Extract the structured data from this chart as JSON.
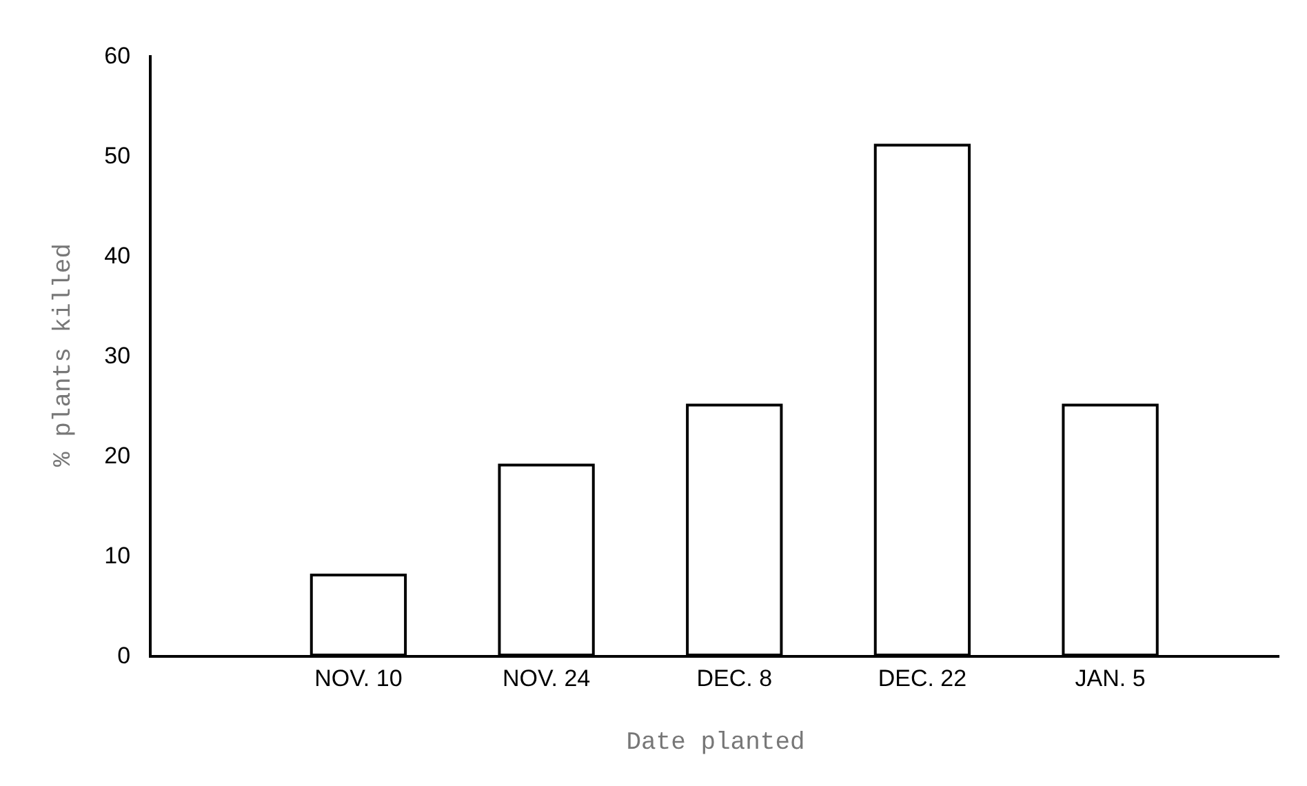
{
  "chart_data": {
    "type": "bar",
    "xlabel": "Date planted",
    "ylabel": "% plants killed",
    "categories": [
      "NOV. 10",
      "NOV. 24",
      "DEC. 8",
      "DEC. 22",
      "JAN. 5"
    ],
    "values": [
      8,
      19,
      25,
      51,
      25
    ],
    "color": "#ffffff",
    "ylim": [
      0,
      60
    ],
    "yticks": [
      0,
      10,
      20,
      30,
      40,
      50,
      60
    ]
  }
}
